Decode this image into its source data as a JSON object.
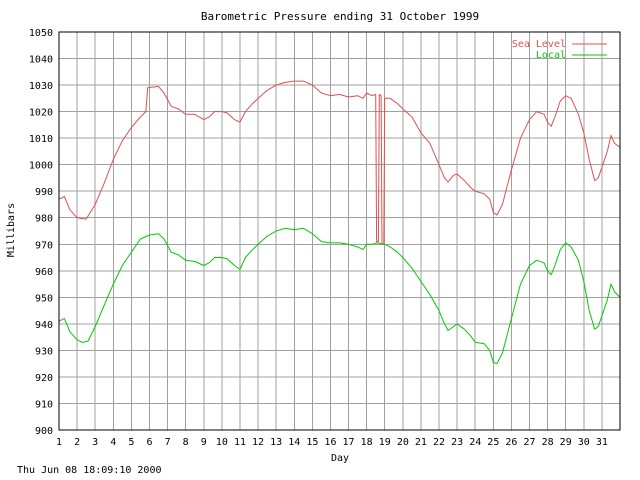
{
  "footer_timestamp": "Thu Jun 08 18:09:10 2000",
  "chart_data": {
    "type": "line",
    "title": "Barometric Pressure ending 31 October 1999",
    "xlabel": "Day",
    "ylabel": "Millibars",
    "ylim": [
      900,
      1050
    ],
    "xlim": [
      1,
      32
    ],
    "yticks": [
      900,
      910,
      920,
      930,
      940,
      950,
      960,
      970,
      980,
      990,
      1000,
      1010,
      1020,
      1030,
      1040,
      1050
    ],
    "xticks": [
      1,
      2,
      3,
      4,
      5,
      6,
      7,
      8,
      9,
      10,
      11,
      12,
      13,
      14,
      15,
      16,
      17,
      18,
      19,
      20,
      21,
      22,
      23,
      24,
      25,
      26,
      27,
      28,
      29,
      30,
      31
    ],
    "grid": true,
    "legend_position": "top-right",
    "series": [
      {
        "name": "Sea Level",
        "color": "#e05050",
        "points": [
          [
            1.0,
            987
          ],
          [
            1.3,
            988
          ],
          [
            1.6,
            983
          ],
          [
            2.0,
            980
          ],
          [
            2.5,
            979.5
          ],
          [
            3.0,
            985
          ],
          [
            3.5,
            993
          ],
          [
            4.0,
            1002
          ],
          [
            4.5,
            1009
          ],
          [
            5.0,
            1014
          ],
          [
            5.5,
            1018
          ],
          [
            5.8,
            1020
          ],
          [
            5.9,
            1029
          ],
          [
            6.5,
            1029.5
          ],
          [
            6.8,
            1027
          ],
          [
            7.2,
            1022
          ],
          [
            7.6,
            1021
          ],
          [
            8.0,
            1019
          ],
          [
            8.5,
            1019
          ],
          [
            9.0,
            1017
          ],
          [
            9.3,
            1018
          ],
          [
            9.6,
            1020
          ],
          [
            10.0,
            1020
          ],
          [
            10.3,
            1019.5
          ],
          [
            10.7,
            1017
          ],
          [
            11.0,
            1016
          ],
          [
            11.3,
            1020
          ],
          [
            11.7,
            1023
          ],
          [
            12.0,
            1025
          ],
          [
            12.5,
            1028
          ],
          [
            13.0,
            1030
          ],
          [
            13.5,
            1031
          ],
          [
            14.0,
            1031.5
          ],
          [
            14.5,
            1031.5
          ],
          [
            15.0,
            1030
          ],
          [
            15.5,
            1027
          ],
          [
            16.0,
            1026
          ],
          [
            16.5,
            1026.5
          ],
          [
            17.0,
            1025.5
          ],
          [
            17.5,
            1026
          ],
          [
            17.8,
            1025
          ],
          [
            18.0,
            1027
          ],
          [
            18.3,
            1026
          ],
          [
            18.5,
            1026.5
          ],
          [
            18.55,
            971
          ],
          [
            18.65,
            971
          ],
          [
            18.7,
            1026.5
          ],
          [
            18.8,
            1026
          ],
          [
            18.85,
            970
          ],
          [
            18.95,
            970
          ],
          [
            19.0,
            1025
          ],
          [
            19.3,
            1025
          ],
          [
            19.7,
            1023
          ],
          [
            20.0,
            1021
          ],
          [
            20.5,
            1018
          ],
          [
            21.0,
            1012
          ],
          [
            21.5,
            1008
          ],
          [
            22.0,
            1000
          ],
          [
            22.3,
            995
          ],
          [
            22.5,
            993.5
          ],
          [
            22.8,
            996
          ],
          [
            23.0,
            996.5
          ],
          [
            23.4,
            994
          ],
          [
            23.8,
            991
          ],
          [
            24.0,
            990
          ],
          [
            24.5,
            989
          ],
          [
            24.8,
            987
          ],
          [
            25.0,
            982
          ],
          [
            25.2,
            981
          ],
          [
            25.5,
            985
          ],
          [
            26.0,
            998
          ],
          [
            26.5,
            1010
          ],
          [
            27.0,
            1017
          ],
          [
            27.4,
            1020
          ],
          [
            27.8,
            1019
          ],
          [
            28.0,
            1016
          ],
          [
            28.2,
            1014.5
          ],
          [
            28.4,
            1018
          ],
          [
            28.7,
            1024
          ],
          [
            29.0,
            1026
          ],
          [
            29.3,
            1025
          ],
          [
            29.7,
            1019
          ],
          [
            30.0,
            1012
          ],
          [
            30.3,
            1002
          ],
          [
            30.6,
            994
          ],
          [
            30.8,
            995
          ],
          [
            31.0,
            999
          ],
          [
            31.3,
            1005
          ],
          [
            31.5,
            1011
          ],
          [
            31.7,
            1008
          ],
          [
            32.0,
            1006.5
          ]
        ]
      },
      {
        "name": "Local",
        "color": "#00cc00",
        "points": [
          [
            1.0,
            941
          ],
          [
            1.3,
            942
          ],
          [
            1.6,
            937
          ],
          [
            2.0,
            934
          ],
          [
            2.3,
            933
          ],
          [
            2.6,
            933.5
          ],
          [
            3.0,
            939
          ],
          [
            3.5,
            947
          ],
          [
            4.0,
            955
          ],
          [
            4.5,
            962
          ],
          [
            5.0,
            967
          ],
          [
            5.5,
            972
          ],
          [
            6.0,
            973.5
          ],
          [
            6.5,
            974
          ],
          [
            6.8,
            972
          ],
          [
            7.2,
            967
          ],
          [
            7.6,
            966
          ],
          [
            8.0,
            964
          ],
          [
            8.5,
            963.5
          ],
          [
            9.0,
            962
          ],
          [
            9.3,
            963
          ],
          [
            9.6,
            965
          ],
          [
            10.0,
            965
          ],
          [
            10.3,
            964.5
          ],
          [
            10.7,
            962
          ],
          [
            11.0,
            960.5
          ],
          [
            11.3,
            965
          ],
          [
            11.7,
            968
          ],
          [
            12.0,
            970
          ],
          [
            12.5,
            973
          ],
          [
            13.0,
            975
          ],
          [
            13.5,
            976
          ],
          [
            14.0,
            975.5
          ],
          [
            14.5,
            976
          ],
          [
            15.0,
            974
          ],
          [
            15.5,
            971
          ],
          [
            16.0,
            970.5
          ],
          [
            16.5,
            970.5
          ],
          [
            17.0,
            970
          ],
          [
            17.5,
            969
          ],
          [
            17.8,
            968
          ],
          [
            18.0,
            970
          ],
          [
            18.3,
            970
          ],
          [
            18.6,
            970.5
          ],
          [
            19.0,
            970
          ],
          [
            19.3,
            969
          ],
          [
            19.7,
            967
          ],
          [
            20.0,
            965
          ],
          [
            20.5,
            961
          ],
          [
            21.0,
            956
          ],
          [
            21.5,
            951
          ],
          [
            22.0,
            945
          ],
          [
            22.3,
            940
          ],
          [
            22.5,
            937.5
          ],
          [
            22.8,
            939
          ],
          [
            23.0,
            940
          ],
          [
            23.4,
            938
          ],
          [
            23.8,
            935
          ],
          [
            24.0,
            933
          ],
          [
            24.5,
            932.5
          ],
          [
            24.8,
            930
          ],
          [
            25.0,
            925.5
          ],
          [
            25.2,
            925
          ],
          [
            25.5,
            929
          ],
          [
            26.0,
            942
          ],
          [
            26.5,
            955
          ],
          [
            27.0,
            962
          ],
          [
            27.4,
            964
          ],
          [
            27.8,
            963
          ],
          [
            28.0,
            960
          ],
          [
            28.2,
            958.5
          ],
          [
            28.4,
            962
          ],
          [
            28.7,
            968
          ],
          [
            29.0,
            970.5
          ],
          [
            29.3,
            969
          ],
          [
            29.7,
            964
          ],
          [
            30.0,
            956
          ],
          [
            30.3,
            945
          ],
          [
            30.6,
            938
          ],
          [
            30.8,
            939
          ],
          [
            31.0,
            943
          ],
          [
            31.3,
            949
          ],
          [
            31.5,
            955
          ],
          [
            31.7,
            952
          ],
          [
            32.0,
            950
          ]
        ]
      }
    ]
  }
}
